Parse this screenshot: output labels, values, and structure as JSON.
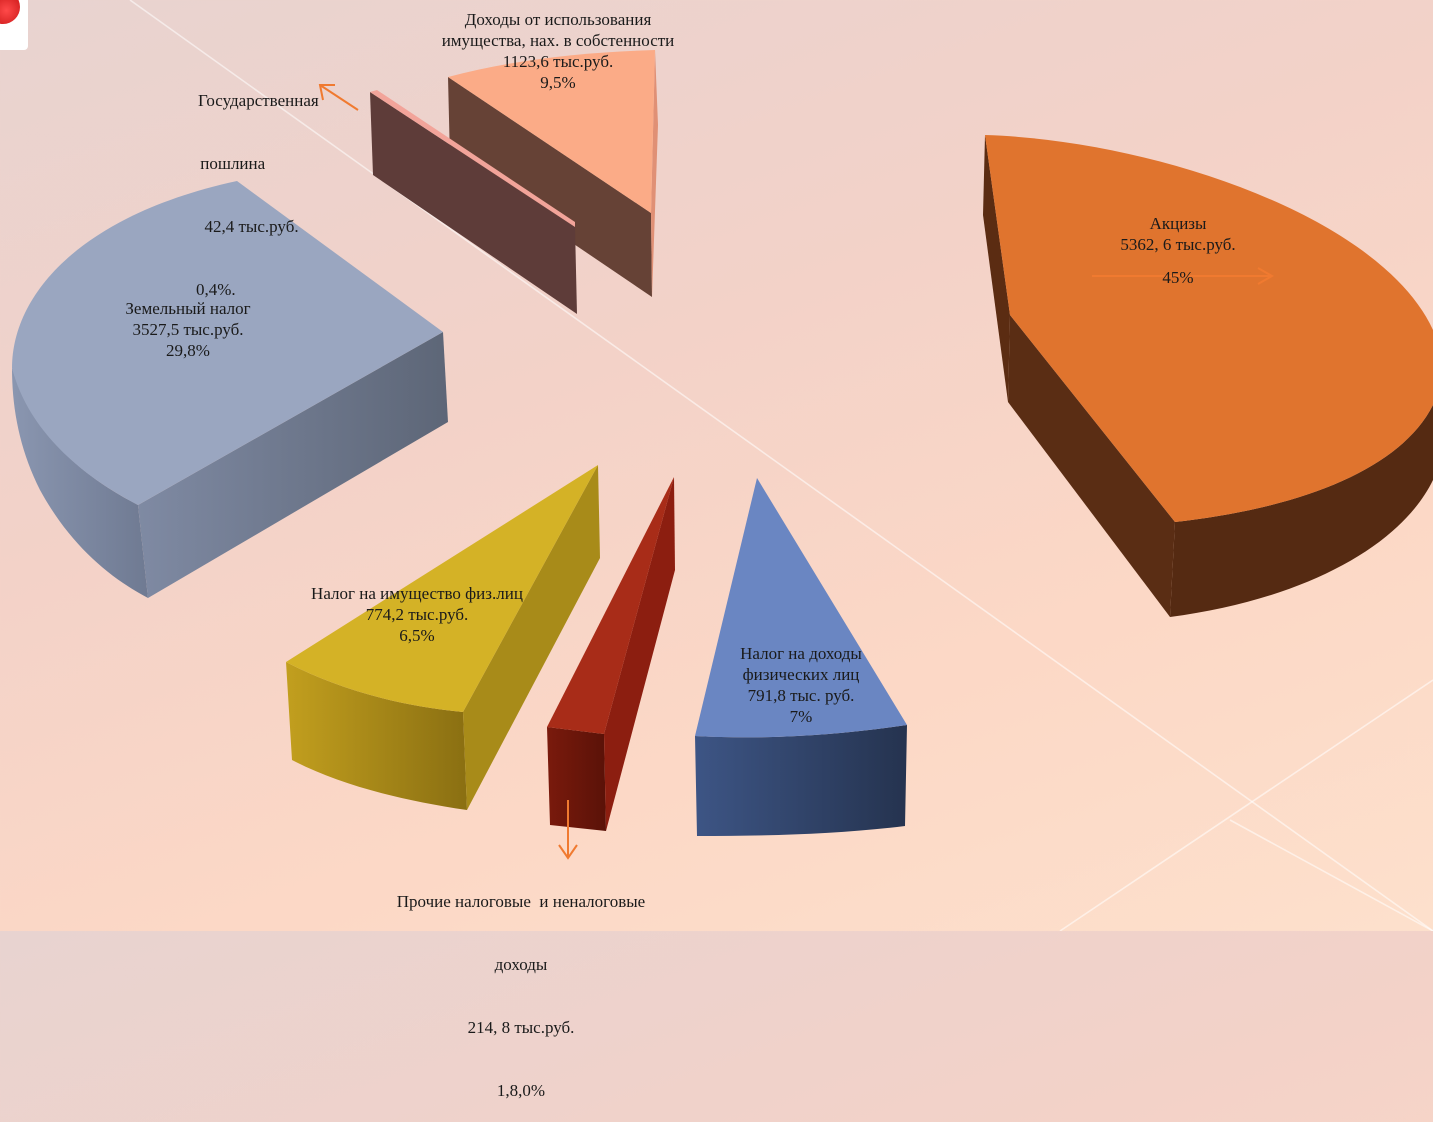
{
  "chart_data": {
    "type": "pie",
    "title": "",
    "style": "3d-exploded",
    "slices": [
      {
        "name": "Акцизы",
        "value": 5362.6,
        "percent": 45.0,
        "value_text": "5362, 6 тыс.руб.",
        "percent_text": "45%",
        "color": "#e0742e"
      },
      {
        "name": "Земельный налог",
        "value": 3527.5,
        "percent": 29.8,
        "value_text": "3527,5 тыс.руб.",
        "percent_text": "29,8%",
        "color": "#9aa6c0"
      },
      {
        "name": "Доходы от использования имущества, нах. в собстенности",
        "value": 1123.6,
        "percent": 9.5,
        "value_text": "1123,6 тыс.руб.",
        "percent_text": "9,5%",
        "color": "#fbab87"
      },
      {
        "name": "Налог на доходы физических лиц",
        "value": 791.8,
        "percent": 7.0,
        "value_text": "791,8 тыс. руб.",
        "percent_text": "7%",
        "color": "#6a86c2"
      },
      {
        "name": "Налог на имущество физ.лиц",
        "value": 774.2,
        "percent": 6.5,
        "value_text": "774,2 тыс.руб.",
        "percent_text": "6,5%",
        "color": "#d4b226"
      },
      {
        "name": "Прочие налоговые и неналоговые доходы",
        "value": 214.8,
        "percent": 1.8,
        "value_text": "214, 8 тыс.руб.",
        "percent_text": "1,8,0%",
        "color": "#a82c18"
      },
      {
        "name": "Государственная пошлина",
        "value": 42.4,
        "percent": 0.4,
        "value_text": "42,4 тыс.руб.",
        "percent_text": "0,4%.",
        "color": "#f2a49a"
      }
    ]
  },
  "labels": {
    "akcizy": {
      "l1": "Акцизы",
      "l2": "5362, 6 тыс.руб.",
      "l3": "45%"
    },
    "zemel": {
      "l1": "Земельный налог",
      "l2": "3527,5 тыс.руб.",
      "l3": "29,8%"
    },
    "dohody_imush": {
      "l1": "Доходы от использования",
      "l2": "имущества, нах. в собстенности",
      "l3": "1123,6 тыс.руб.",
      "l4": "9,5%"
    },
    "gos_poshlina": {
      "l1": "Государственная",
      "l2": " пошлина",
      "l3": "  42,4 тыс.руб.",
      "l4": "0,4%."
    },
    "ndfl": {
      "l1": "Налог на доходы",
      "l2": "физических лиц",
      "l3": "791,8 тыс. руб.",
      "l4": "7%"
    },
    "nalog_imush": {
      "l1": "Налог на имущество физ.лиц",
      "l2": "774,2 тыс.руб.",
      "l3": "6,5%"
    },
    "prochie": {
      "l1": "Прочие налоговые  и неналоговые",
      "l2": "доходы",
      "l3": "214, 8 тыс.руб.",
      "l4": "1,8,0%"
    }
  },
  "colors": {
    "arrow": "#f07a30"
  }
}
